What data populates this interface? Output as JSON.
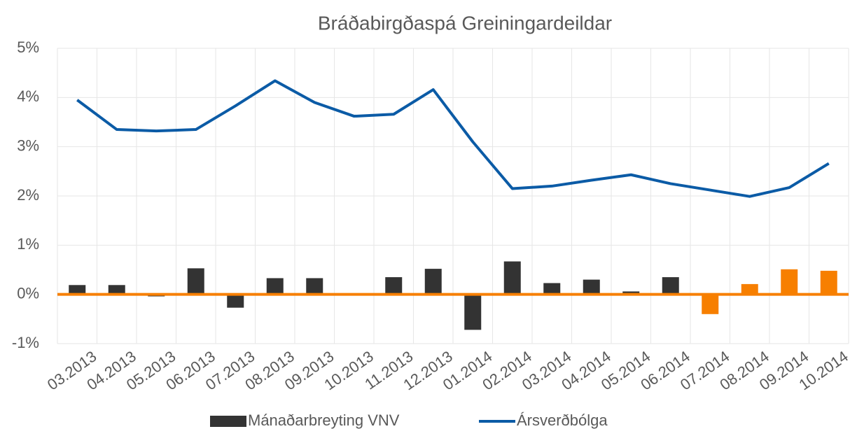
{
  "chart_data": {
    "type": "bar-line",
    "title": "Bráðabirgðaspá Greiningardeildar",
    "categories": [
      "03.2013",
      "04.2013",
      "05.2013",
      "06.2013",
      "07.2013",
      "08.2013",
      "09.2013",
      "10.2013",
      "11.2013",
      "12.2013",
      "01.2014",
      "02.2014",
      "03.2014",
      "04.2014",
      "05.2014",
      "06.2014",
      "07.2014",
      "08.2014",
      "09.2014",
      "10.2014"
    ],
    "series": [
      {
        "name": "Mánaðarbreyting VNV",
        "type": "bar",
        "color": "#333333",
        "colors": [
          "#333333",
          "#333333",
          "#333333",
          "#333333",
          "#333333",
          "#333333",
          "#333333",
          "#333333",
          "#333333",
          "#333333",
          "#333333",
          "#333333",
          "#333333",
          "#333333",
          "#333333",
          "#333333",
          "#f77f00",
          "#f77f00",
          "#f77f00",
          "#f77f00"
        ],
        "values": [
          0.19,
          0.19,
          -0.04,
          0.53,
          -0.27,
          0.33,
          0.33,
          0,
          0.35,
          0.52,
          -0.72,
          0.67,
          0.23,
          0.3,
          0.06,
          0.35,
          -0.4,
          0.21,
          0.51,
          0.48
        ]
      },
      {
        "name": "Ársverðbólga",
        "type": "line",
        "color": "#0b5ba6",
        "values": [
          3.95,
          3.35,
          3.32,
          3.35,
          3.83,
          4.34,
          3.9,
          3.62,
          3.66,
          4.16,
          3.1,
          2.15,
          2.2,
          2.32,
          2.43,
          2.25,
          2.12,
          1.99,
          2.17,
          2.66
        ]
      }
    ],
    "ylim": [
      -1,
      5
    ],
    "yticks": [
      {
        "value": -1,
        "label": "-1%"
      },
      {
        "value": 0,
        "label": "0%"
      },
      {
        "value": 1,
        "label": "1%"
      },
      {
        "value": 2,
        "label": "2%"
      },
      {
        "value": 3,
        "label": "3%"
      },
      {
        "value": 4,
        "label": "4%"
      },
      {
        "value": 5,
        "label": "5%"
      }
    ],
    "grid": true,
    "zero_line_color": "#f77f00",
    "legend": "bottom"
  }
}
